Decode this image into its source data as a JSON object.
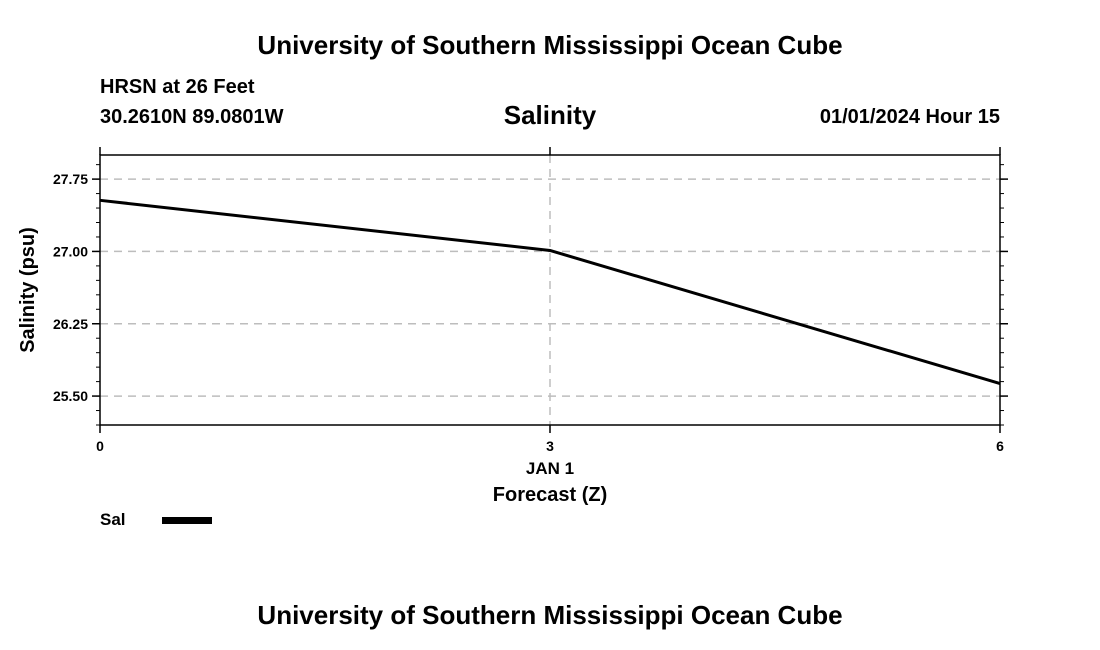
{
  "header": {
    "title": "University of Southern Mississippi Ocean Cube",
    "station": "HRSN at 26 Feet",
    "coordinates": "30.2610N  89.0801W",
    "timestamp": "01/01/2024 Hour 15"
  },
  "footer": {
    "title": "University of Southern Mississippi Ocean Cube"
  },
  "chart_data": {
    "type": "line",
    "title": "Salinity",
    "xlabel": "Forecast (Z)",
    "ylabel": "Salinity (psu)",
    "x_date_label": "JAN 1",
    "x": [
      0,
      3,
      6
    ],
    "x_ticks": [
      "0",
      "3",
      "6"
    ],
    "xlim": [
      0,
      6
    ],
    "y_ticks": [
      "25.50",
      "26.25",
      "27.00",
      "27.75"
    ],
    "ylim": [
      25.2,
      28.0
    ],
    "grid": true,
    "legend_position": "bottom-left",
    "series": [
      {
        "name": "Sal",
        "color": "#000000",
        "values": [
          27.53,
          27.01,
          25.63
        ]
      }
    ]
  }
}
